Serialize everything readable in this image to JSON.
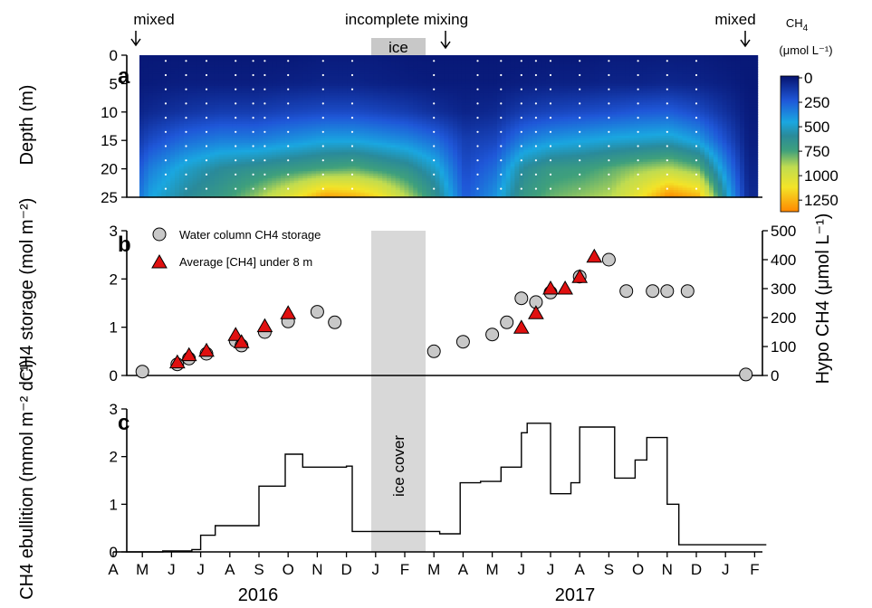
{
  "figure": {
    "months": [
      "A",
      "M",
      "J",
      "J",
      "A",
      "S",
      "O",
      "N",
      "D",
      "J",
      "F",
      "M",
      "A",
      "M",
      "J",
      "J",
      "A",
      "S",
      "O",
      "N",
      "D",
      "J",
      "F"
    ],
    "year_labels": [
      "2016",
      "2017"
    ],
    "annotations": {
      "mixed_left": "mixed",
      "incomplete": "incomplete mixing",
      "mixed_right": "mixed",
      "ice": "ice",
      "ice_cover": "ice cover"
    },
    "colorbar": {
      "title": "CH4",
      "title_sub": "4",
      "unit": "(μmol L⁻¹)",
      "ticks": [
        "0",
        "250",
        "500",
        "750",
        "1000",
        "1250"
      ]
    }
  },
  "chart_data": [
    {
      "panel": "a",
      "type": "heatmap",
      "ylabel": "Depth (m)",
      "ylim": [
        0,
        25
      ],
      "yticks": [
        "0",
        "5",
        "10",
        "15",
        "20",
        "25"
      ],
      "zlim": [
        0,
        1350
      ],
      "x": [
        0.2,
        1.2,
        2.4,
        3.6,
        4.8,
        6.0,
        7.2,
        8.2,
        9.0,
        10.0,
        11.0,
        12.0,
        13.0,
        14.0,
        15.0,
        16.0,
        17.0,
        18.0,
        19.0,
        20.0,
        21.0,
        21.7
      ],
      "depths": [
        0,
        5,
        10,
        15,
        20,
        25
      ],
      "z": [
        [
          20,
          20,
          20,
          20,
          20,
          20,
          30,
          30,
          30,
          20,
          20,
          20,
          20,
          20,
          20,
          20,
          30,
          30,
          30,
          30,
          20,
          20
        ],
        [
          20,
          30,
          40,
          40,
          40,
          50,
          60,
          60,
          50,
          40,
          30,
          30,
          30,
          40,
          50,
          50,
          60,
          60,
          70,
          60,
          40,
          20
        ],
        [
          30,
          80,
          120,
          150,
          150,
          180,
          200,
          200,
          180,
          150,
          100,
          60,
          80,
          150,
          180,
          200,
          220,
          250,
          260,
          200,
          100,
          30
        ],
        [
          50,
          200,
          300,
          350,
          350,
          400,
          450,
          450,
          420,
          380,
          300,
          150,
          180,
          350,
          420,
          450,
          480,
          500,
          520,
          430,
          200,
          40
        ],
        [
          80,
          350,
          500,
          600,
          650,
          700,
          750,
          780,
          720,
          650,
          500,
          200,
          300,
          600,
          700,
          720,
          780,
          850,
          900,
          800,
          350,
          60
        ],
        [
          120,
          450,
          600,
          700,
          850,
          1050,
          1300,
          1250,
          1150,
          900,
          650,
          250,
          400,
          700,
          800,
          850,
          900,
          1100,
          1350,
          1250,
          500,
          80
        ]
      ]
    },
    {
      "panel": "b",
      "type": "scatter",
      "ylabel": "CH4 storage (mol m⁻²)",
      "ylim": [
        0,
        3
      ],
      "yticks": [
        "0",
        "1",
        "2",
        "3"
      ],
      "y2label": "Hypo CH4 (μmol L⁻¹)",
      "y2lim": [
        0,
        500
      ],
      "y2ticks": [
        "0",
        "100",
        "200",
        "300",
        "400",
        "500"
      ],
      "series": [
        {
          "name": "Water column CH4 storage",
          "x": [
            1.0,
            2.2,
            2.6,
            3.2,
            4.2,
            4.4,
            5.2,
            6.0,
            7.0,
            7.6,
            11.0,
            12.0,
            13.0,
            13.5,
            14.0,
            14.5,
            15.0,
            16.0,
            17.0,
            17.6,
            18.5,
            19.0,
            19.7,
            21.7
          ],
          "values": [
            0.08,
            0.23,
            0.35,
            0.45,
            0.72,
            0.62,
            0.9,
            1.12,
            1.32,
            1.1,
            0.5,
            0.7,
            0.85,
            1.1,
            1.6,
            1.52,
            1.72,
            2.05,
            2.4,
            1.75,
            1.75,
            1.75,
            1.75,
            0.02
          ]
        },
        {
          "name": "Average [CH4] under 8 m",
          "x": [
            2.2,
            2.6,
            3.2,
            4.2,
            4.4,
            5.2,
            6.0,
            14.0,
            14.5,
            15.0,
            15.5,
            16.0,
            16.5
          ],
          "values": [
            45,
            70,
            85,
            140,
            115,
            170,
            215,
            165,
            215,
            300,
            300,
            340,
            410
          ]
        }
      ]
    },
    {
      "panel": "c",
      "type": "line",
      "ylabel": "CH4 ebullition (mmol m⁻² d⁻¹)",
      "ylim": [
        0,
        3
      ],
      "yticks": [
        "0",
        "1",
        "2",
        "3"
      ],
      "x": [
        0.0,
        1.7,
        2.7,
        3.0,
        3.5,
        4.0,
        4.5,
        5.0,
        5.9,
        6.5,
        6.9,
        8.0,
        8.2,
        10.2,
        11.2,
        11.9,
        12.6,
        13.3,
        13.6,
        14.0,
        14.2,
        14.7,
        15.0,
        15.7,
        16.0,
        16.5,
        17.2,
        17.5,
        17.9,
        18.3,
        18.7,
        19.0,
        19.4,
        19.8,
        20.2,
        21.0,
        21.7
      ],
      "values": [
        0.0,
        0.02,
        0.05,
        0.35,
        0.55,
        0.55,
        0.55,
        1.38,
        2.05,
        1.78,
        1.78,
        1.8,
        0.43,
        0.43,
        0.38,
        1.45,
        1.48,
        1.78,
        1.78,
        2.5,
        2.7,
        2.7,
        1.22,
        1.45,
        2.62,
        2.62,
        1.55,
        1.55,
        1.93,
        2.4,
        2.4,
        1.0,
        0.15,
        0.15,
        0.15,
        0.15,
        0.15
      ]
    }
  ]
}
